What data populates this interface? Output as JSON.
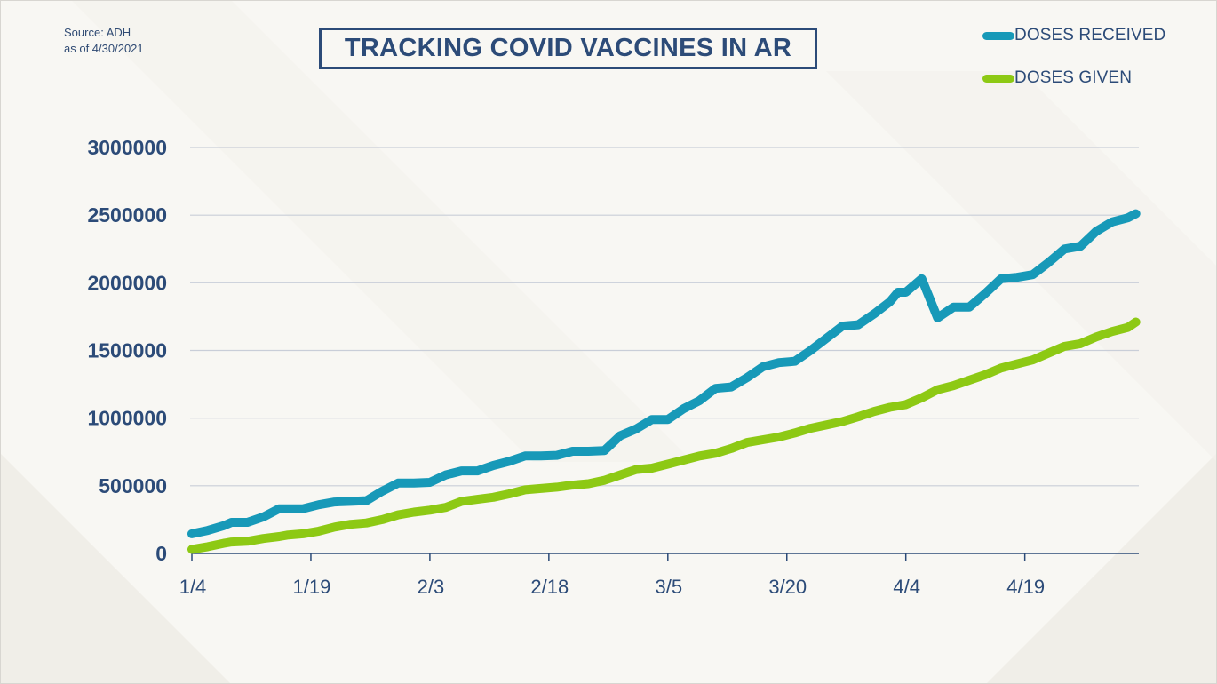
{
  "header": {
    "source_line1": "Source: ADH",
    "source_line2": "as of 4/30/2021",
    "title": "TRACKING COVID VACCINES IN AR"
  },
  "colors": {
    "background": "#f8f7f3",
    "navy": "#2c4b78",
    "doses_received": "#1799b8",
    "doses_given": "#8dc914",
    "gridline": "#c9ced8"
  },
  "chart_data": {
    "type": "line",
    "title": "TRACKING COVID VACCINES IN AR",
    "xlabel": "",
    "ylabel": "",
    "ylim": [
      0,
      3000000
    ],
    "yticks": [
      0,
      500000,
      1000000,
      1500000,
      2000000,
      2500000,
      3000000
    ],
    "ytick_labels": [
      "0",
      "500000",
      "1000000",
      "1500000",
      "2000000",
      "2500000",
      "3000000"
    ],
    "x_tick_labels": [
      "1/4",
      "1/19",
      "2/3",
      "2/18",
      "3/5",
      "3/20",
      "4/4",
      "4/19"
    ],
    "x_tick_day_offsets": [
      0,
      15,
      30,
      45,
      60,
      75,
      90,
      105
    ],
    "x_range_days": [
      0,
      119
    ],
    "grid": true,
    "legend_position": "top-right",
    "x_day_offsets": [
      0,
      2,
      4,
      5,
      7,
      9,
      11,
      12,
      14,
      16,
      18,
      20,
      22,
      24,
      26,
      28,
      30,
      32,
      34,
      36,
      38,
      40,
      42,
      44,
      46,
      48,
      50,
      52,
      54,
      56,
      58,
      60,
      62,
      64,
      66,
      68,
      70,
      72,
      74,
      76,
      78,
      80,
      82,
      84,
      86,
      88,
      89,
      90,
      92,
      94,
      96,
      98,
      100,
      102,
      104,
      106,
      108,
      110,
      112,
      114,
      116,
      118,
      119
    ],
    "series": [
      {
        "name": "DOSES RECEIVED",
        "values": [
          145000,
          170000,
          205000,
          230000,
          230000,
          270000,
          330000,
          330000,
          330000,
          360000,
          380000,
          385000,
          390000,
          460000,
          520000,
          520000,
          525000,
          580000,
          610000,
          610000,
          650000,
          680000,
          720000,
          720000,
          725000,
          755000,
          755000,
          760000,
          870000,
          920000,
          990000,
          990000,
          1070000,
          1130000,
          1220000,
          1230000,
          1300000,
          1380000,
          1410000,
          1420000,
          1500000,
          1590000,
          1680000,
          1690000,
          1770000,
          1860000,
          1930000,
          1930000,
          2030000,
          1740000,
          1820000,
          1820000,
          1920000,
          2030000,
          2040000,
          2060000,
          2150000,
          2250000,
          2270000,
          2380000,
          2450000,
          2480000,
          2510000
        ]
      },
      {
        "name": "DOSES GIVEN",
        "values": [
          30000,
          50000,
          75000,
          85000,
          90000,
          110000,
          125000,
          135000,
          145000,
          165000,
          195000,
          215000,
          225000,
          250000,
          285000,
          305000,
          320000,
          340000,
          385000,
          400000,
          415000,
          440000,
          470000,
          480000,
          490000,
          505000,
          515000,
          540000,
          580000,
          620000,
          630000,
          660000,
          690000,
          720000,
          740000,
          775000,
          820000,
          840000,
          860000,
          890000,
          925000,
          950000,
          975000,
          1010000,
          1050000,
          1080000,
          1090000,
          1100000,
          1150000,
          1210000,
          1240000,
          1280000,
          1320000,
          1370000,
          1400000,
          1430000,
          1480000,
          1530000,
          1550000,
          1600000,
          1640000,
          1670000,
          1710000
        ]
      }
    ]
  }
}
